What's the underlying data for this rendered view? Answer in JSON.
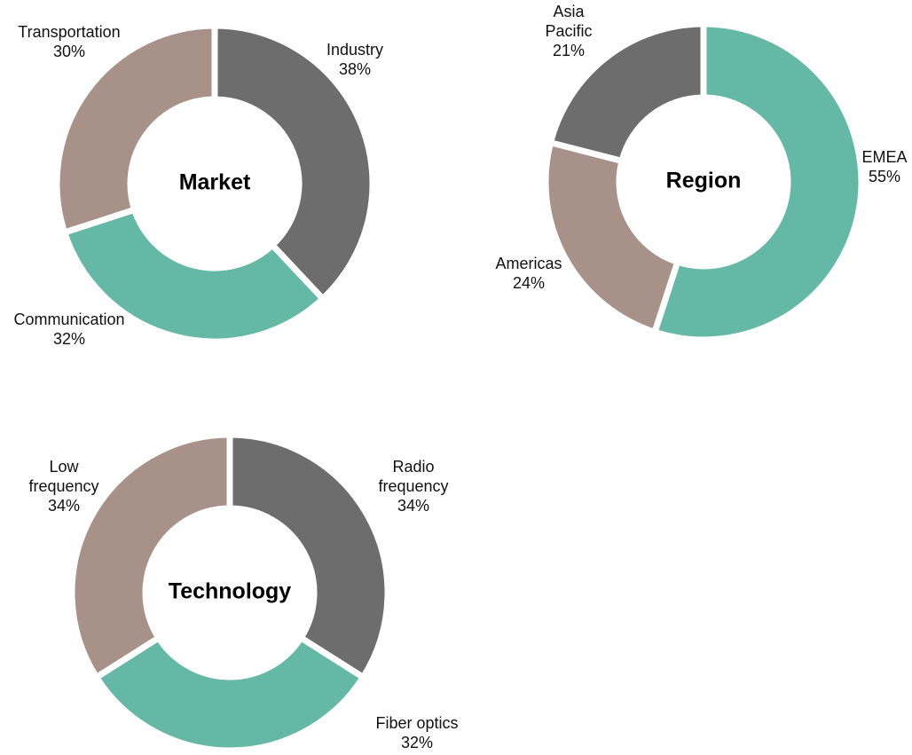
{
  "chart_data": [
    {
      "type": "pie",
      "title": "Market",
      "categories": [
        "Industry",
        "Communication",
        "Transportation"
      ],
      "values": [
        38,
        32,
        30
      ],
      "value_labels": [
        "38%",
        "32%",
        "30%"
      ],
      "colors": [
        "#6d6d6d",
        "#65b8a6",
        "#a89189"
      ]
    },
    {
      "type": "pie",
      "title": "Region",
      "categories": [
        "EMEA",
        "Americas",
        "Asia Pacific"
      ],
      "values": [
        55,
        24,
        21
      ],
      "value_labels": [
        "55%",
        "24%",
        "21%"
      ],
      "colors": [
        "#65b8a6",
        "#a89189",
        "#6d6d6d"
      ]
    },
    {
      "type": "pie",
      "title": "Technology",
      "categories": [
        "Radio frequency",
        "Fiber optics",
        "Low frequency"
      ],
      "values": [
        34,
        32,
        34
      ],
      "value_labels": [
        "34%",
        "32%",
        "34%"
      ],
      "colors": [
        "#6d6d6d",
        "#65b8a6",
        "#a89189"
      ]
    }
  ]
}
